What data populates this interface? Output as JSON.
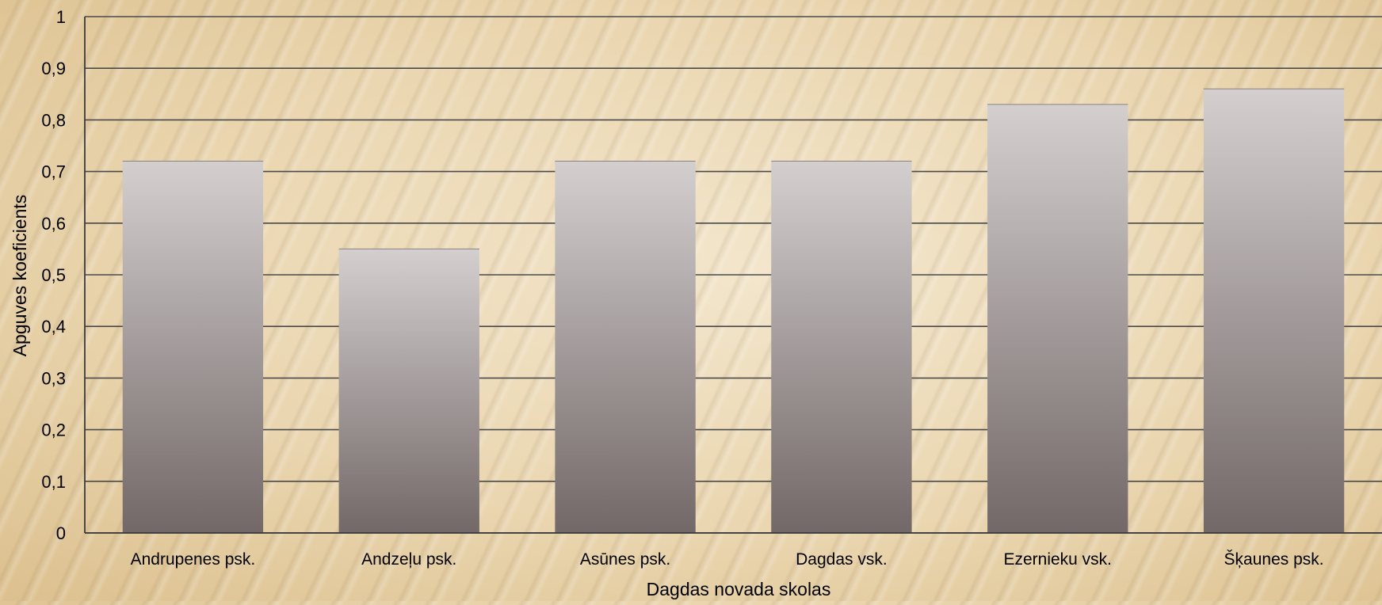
{
  "chart_data": {
    "type": "bar",
    "categories": [
      "Andrupenes psk.",
      "Andzeļu psk.",
      "Asūnes psk.",
      "Dagdas vsk.",
      "Ezernieku vsk.",
      "Šķaunes psk."
    ],
    "values": [
      0.72,
      0.55,
      0.72,
      0.72,
      0.83,
      0.86
    ],
    "title": "",
    "xlabel": "Dagdas novada skolas",
    "ylabel": "Apguves koeficients",
    "ylim": [
      0,
      1
    ],
    "yticks": [
      0,
      0.1,
      0.2,
      0.3,
      0.4,
      0.5,
      0.6,
      0.7,
      0.8,
      0.9,
      1
    ],
    "ytick_labels": [
      "0",
      "0,1",
      "0,2",
      "0,3",
      "0,4",
      "0,5",
      "0,6",
      "0,7",
      "0,8",
      "0,9",
      "1"
    ],
    "grid": true,
    "legend": "none",
    "colors": {
      "bar_top": "#d4cfcf",
      "bar_bottom": "#736868",
      "gridline": "#4a4a4a",
      "axis": "#3a3a3a"
    }
  }
}
